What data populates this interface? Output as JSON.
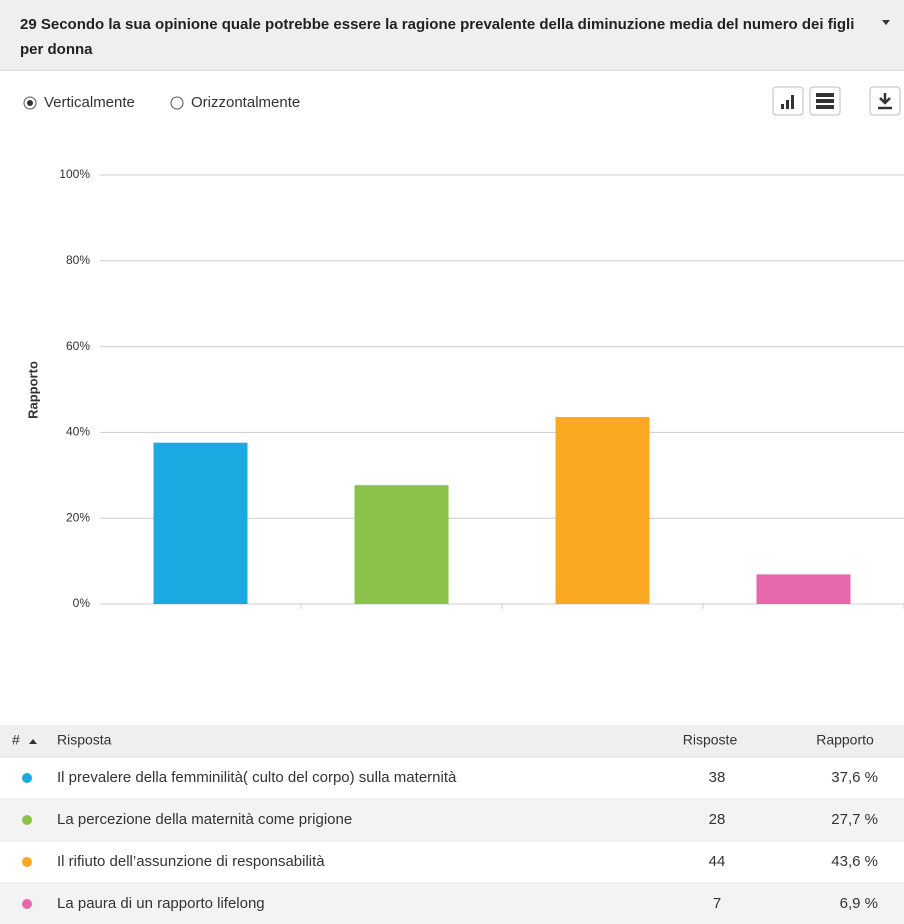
{
  "header": {
    "title": "29 Secondo la sua opinione quale potrebbe essere la ragione prevalente della diminuzione media del numero dei figli per donna"
  },
  "options": {
    "vertical": "Verticalmente",
    "horizontal": "Orizzontalmente"
  },
  "chart_data": {
    "type": "bar",
    "y_label": "Rapporto",
    "categories": [
      null,
      null,
      null,
      null
    ],
    "values": [
      37.6,
      27.7,
      43.6,
      6.9
    ],
    "colors": [
      "#1ba9e1",
      "#8bc34a",
      "#fba922",
      "#e767ab"
    ],
    "ylim": [
      0,
      100
    ],
    "yticks": [
      {
        "value": 0,
        "label": "0%"
      },
      {
        "value": 20,
        "label": "20%"
      },
      {
        "value": 40,
        "label": "40%"
      },
      {
        "value": 60,
        "label": "60%"
      },
      {
        "value": 80,
        "label": "80%"
      },
      {
        "value": 100,
        "label": "100%"
      }
    ],
    "grid": true
  },
  "table": {
    "columns": [
      "#",
      "Risposta",
      "Risposte",
      "Rapporto"
    ],
    "rows": [
      {
        "answer": "Il prevalere della femminilità( culto del corpo) sulla maternità",
        "count": 38,
        "ratio": "37,6 %"
      },
      {
        "answer": "La percezione della maternità come prigione",
        "count": 28,
        "ratio": "27,7 %"
      },
      {
        "answer": "Il rifiuto dell’assunzione di responsabilità",
        "count": 44,
        "ratio": "43,6 %"
      },
      {
        "answer": "La paura di un rapporto lifelong",
        "count": 7,
        "ratio": "6,9 %"
      }
    ]
  }
}
